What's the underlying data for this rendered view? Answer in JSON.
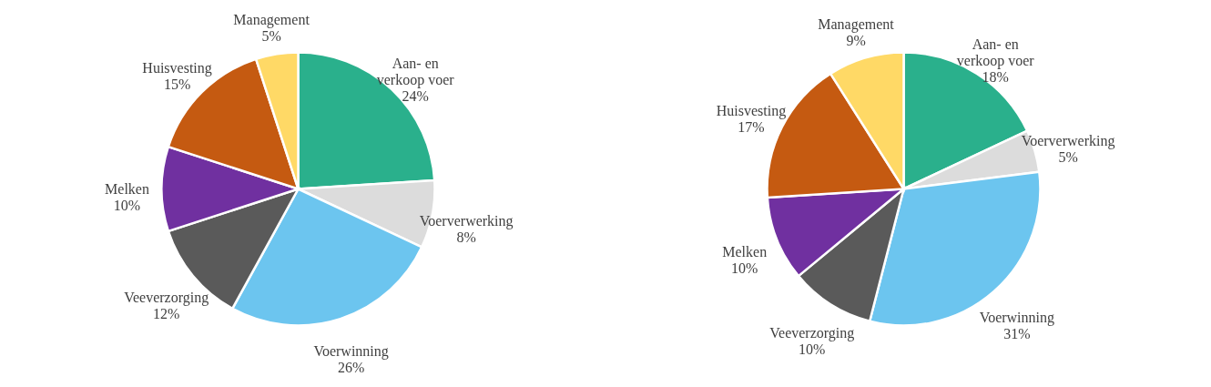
{
  "chart_data": [
    {
      "type": "pie",
      "categories": [
        "Aan- en verkoop voer",
        "Voerverwerking",
        "Voerwinning",
        "Veeverzorging",
        "Melken",
        "Huisvesting",
        "Management"
      ],
      "values": [
        24,
        8,
        26,
        12,
        10,
        15,
        5
      ],
      "value_labels": [
        "24%",
        "8%",
        "26%",
        "12%",
        "10%",
        "15%",
        "5%"
      ],
      "colors": [
        "#2ab08c",
        "#dcdcdc",
        "#6cc5ef",
        "#5a5a5a",
        "#7030a0",
        "#c55a11",
        "#ffd966"
      ],
      "legend": false
    },
    {
      "type": "pie",
      "categories": [
        "Aan- en verkoop voer",
        "Voerverwerking",
        "Voerwinning",
        "Veeverzorging",
        "Melken",
        "Huisvesting",
        "Management"
      ],
      "values": [
        18,
        5,
        31,
        10,
        10,
        17,
        9
      ],
      "value_labels": [
        "18%",
        "5%",
        "31%",
        "10%",
        "10%",
        "17%",
        "9%"
      ],
      "colors": [
        "#2ab08c",
        "#dcdcdc",
        "#6cc5ef",
        "#5a5a5a",
        "#7030a0",
        "#c55a11",
        "#ffd966"
      ],
      "legend": false
    }
  ]
}
